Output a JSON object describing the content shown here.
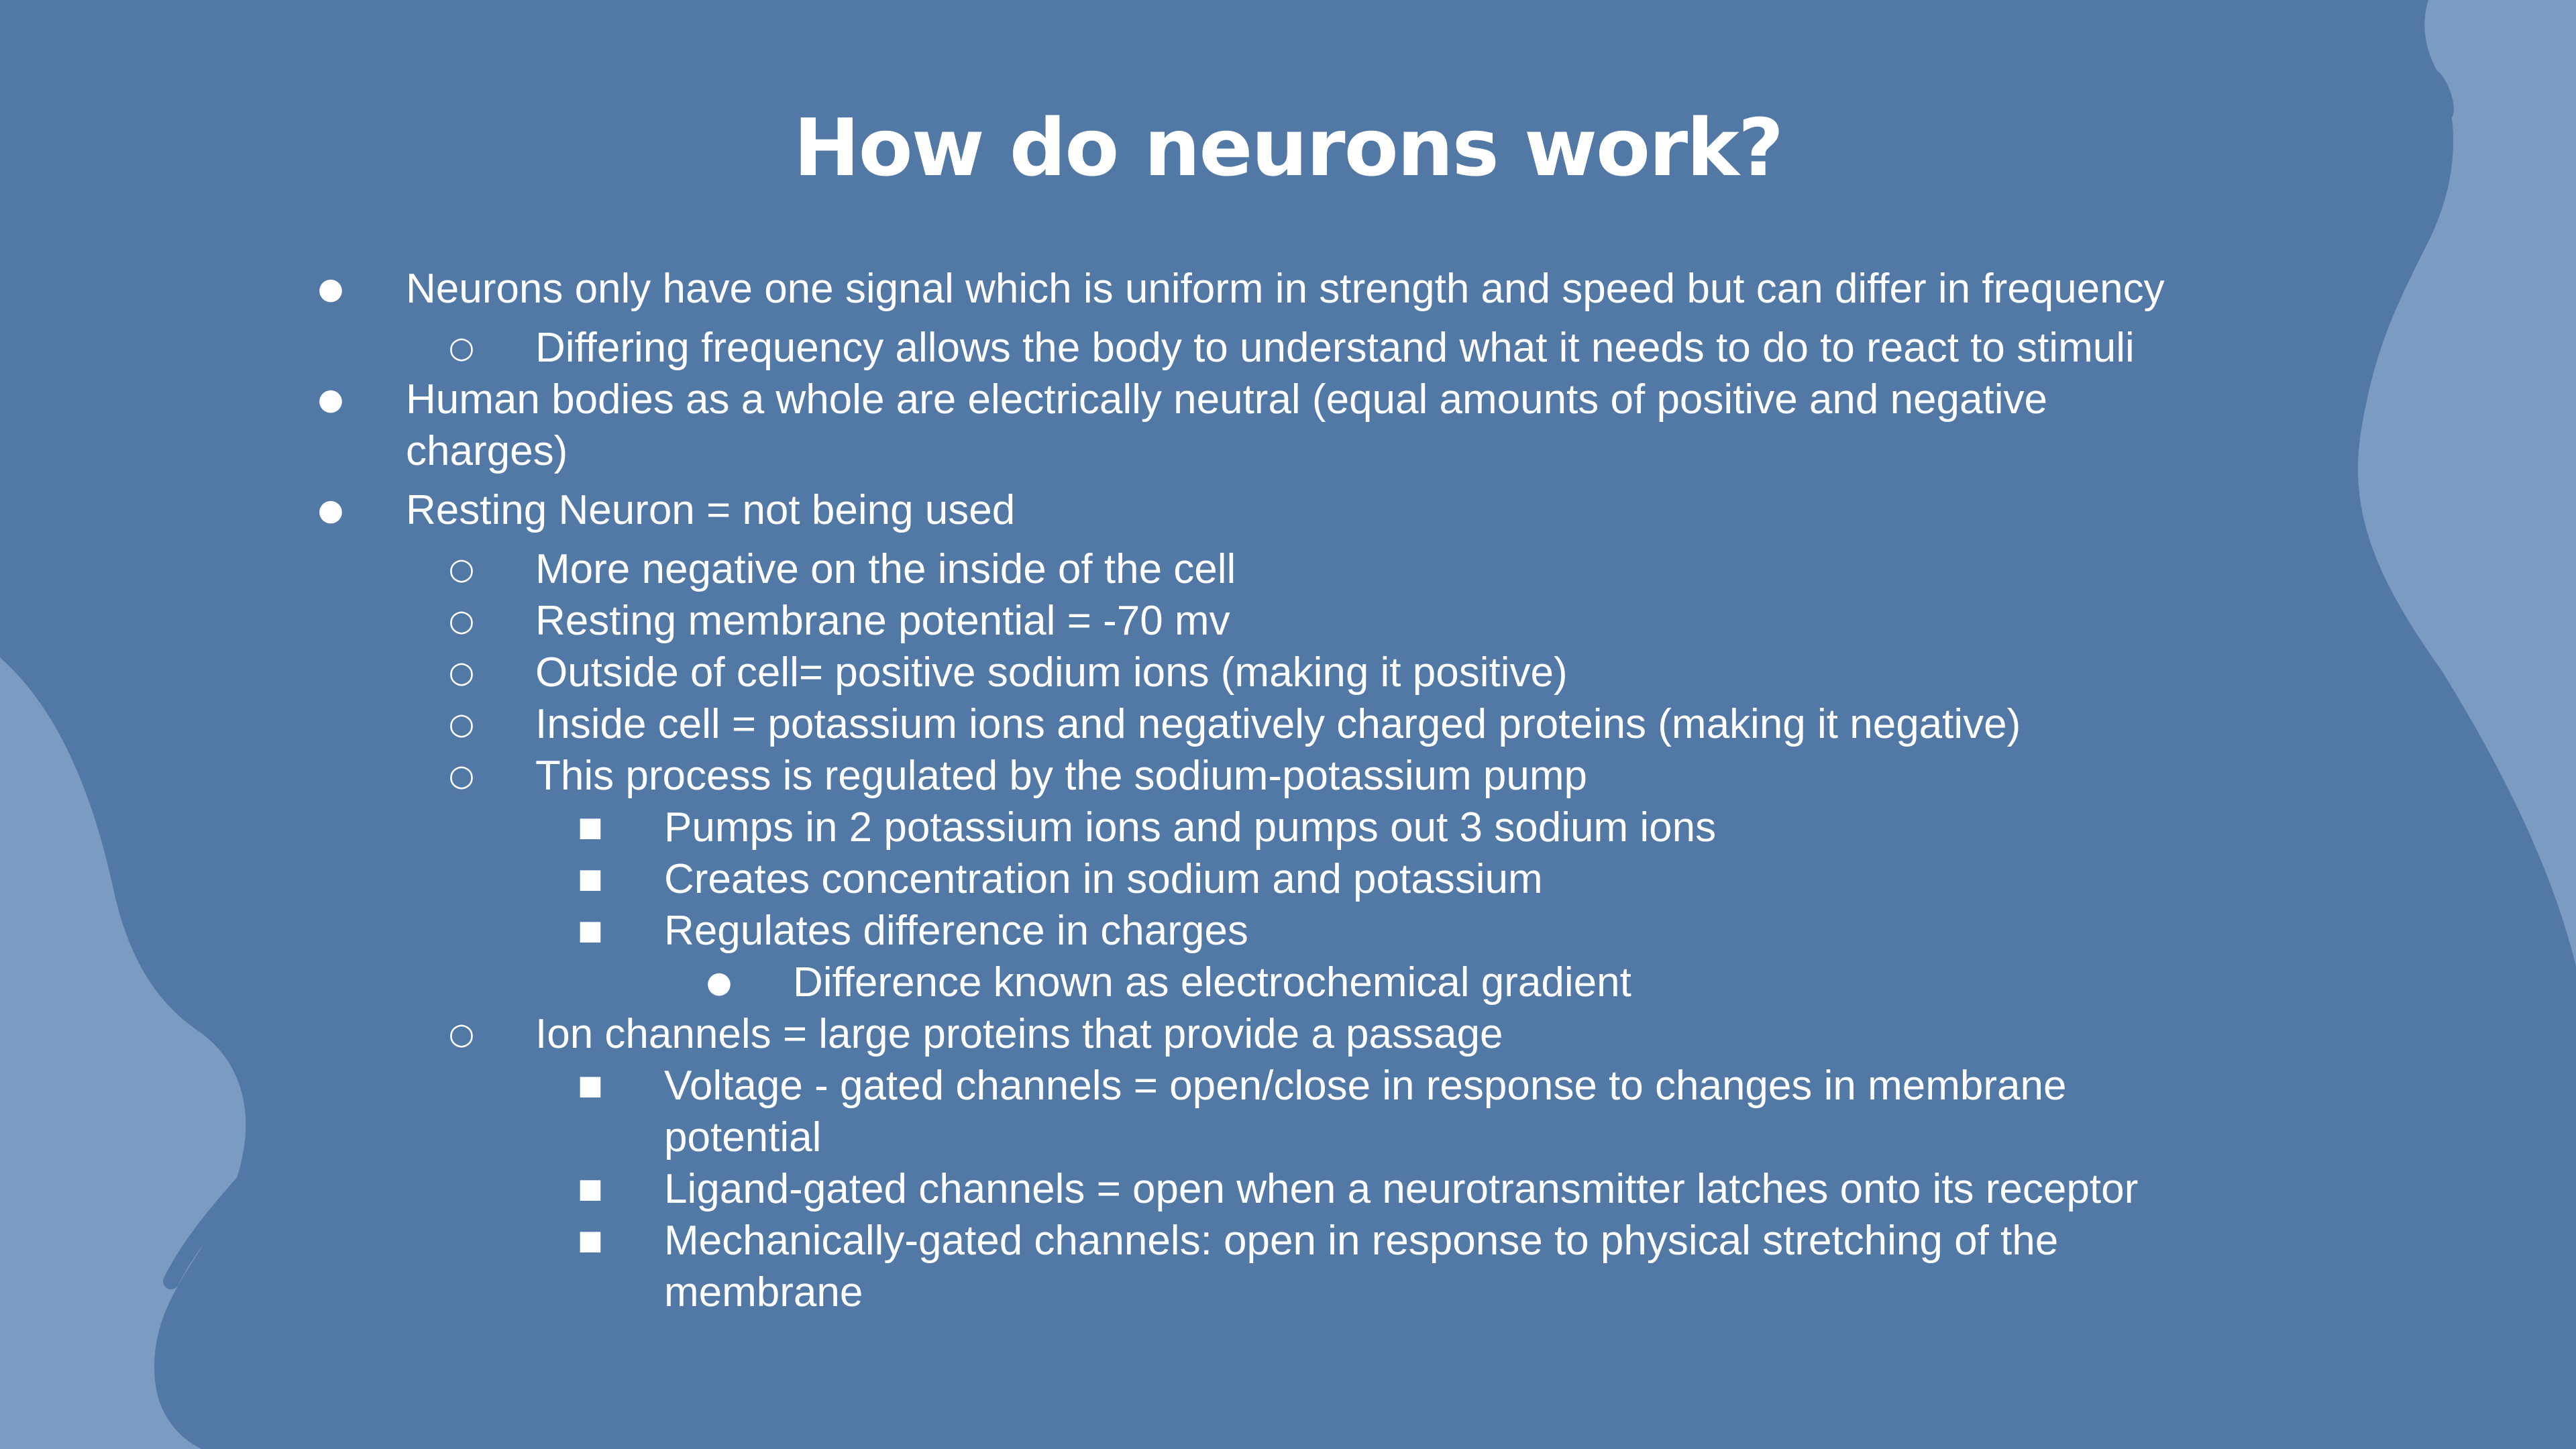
{
  "slide": {
    "title": "How do neurons work?",
    "colors": {
      "background": "#5278a6",
      "blob": "#7b9cc2",
      "text": "#ffffff"
    },
    "bullets": [
      {
        "level": 0,
        "marker": "●",
        "lines": [
          "Neurons only have one signal which is uniform in strength and speed but can differ in frequency"
        ]
      },
      {
        "level": 1,
        "marker": "○",
        "lines": [
          "Differing frequency allows the body to understand what it needs to do to react to stimuli"
        ]
      },
      {
        "level": 0,
        "marker": "●",
        "lines": [
          "Human bodies as a whole are electrically neutral (equal amounts of positive and negative",
          "charges)"
        ]
      },
      {
        "level": 0,
        "marker": "●",
        "lines": [
          "Resting Neuron = not being used"
        ]
      },
      {
        "level": 1,
        "marker": "○",
        "lines": [
          "More negative on the inside of the cell"
        ]
      },
      {
        "level": 1,
        "marker": "○",
        "lines": [
          "Resting membrane potential = -70 mv"
        ]
      },
      {
        "level": 1,
        "marker": "○",
        "lines": [
          "Outside of cell= positive sodium ions (making it positive)"
        ]
      },
      {
        "level": 1,
        "marker": "○",
        "lines": [
          "Inside cell = potassium ions and negatively charged proteins (making it negative)"
        ]
      },
      {
        "level": 1,
        "marker": "○",
        "lines": [
          "This process is regulated by the sodium-potassium pump"
        ]
      },
      {
        "level": 2,
        "marker": "■",
        "lines": [
          "Pumps in 2 potassium ions and pumps out 3 sodium ions"
        ]
      },
      {
        "level": 2,
        "marker": "■",
        "lines": [
          "Creates concentration in sodium and potassium"
        ]
      },
      {
        "level": 2,
        "marker": "■",
        "lines": [
          "Regulates difference in charges"
        ]
      },
      {
        "level": 3,
        "marker": "●",
        "lines": [
          "Difference known as electrochemical gradient"
        ]
      },
      {
        "level": 1,
        "marker": "○",
        "lines": [
          "Ion channels = large proteins that provide a passage"
        ]
      },
      {
        "level": 2,
        "marker": "■",
        "lines": [
          "Voltage - gated channels = open/close in response to changes in membrane",
          "potential"
        ]
      },
      {
        "level": 2,
        "marker": "■",
        "lines": [
          "Ligand-gated channels = open when a neurotransmitter latches onto its receptor"
        ]
      },
      {
        "level": 2,
        "marker": "■",
        "lines": [
          "Mechanically-gated channels: open in response to physical stretching of the",
          "membrane"
        ]
      }
    ]
  }
}
